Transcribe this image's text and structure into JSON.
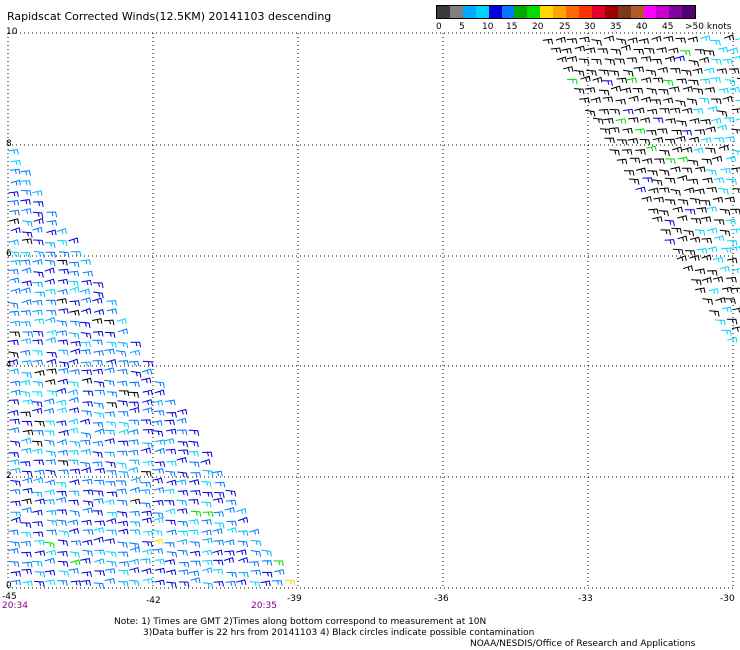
{
  "title": "Rapidscat Corrected Winds(12.5KM) 20141103 descending",
  "legend": {
    "colors": [
      "#3a3a3a",
      "#7f7f7f",
      "#00aaff",
      "#00d5ff",
      "#0000d8",
      "#0078ff",
      "#00aa00",
      "#00dd00",
      "#ffd700",
      "#ffa500",
      "#ff6a00",
      "#ff3300",
      "#e0002a",
      "#a00000",
      "#7b3b1b",
      "#b05a2a",
      "#ff00ff",
      "#cc00cc",
      "#8000a0",
      "#500070"
    ],
    "labels": [
      "0",
      "5",
      "10",
      "15",
      "20",
      "25",
      "30",
      "35",
      "40",
      "45",
      ">50 knots"
    ]
  },
  "axes": {
    "x_labels": [
      "-45",
      "-42",
      "-39",
      "-36",
      "-33",
      "-30"
    ],
    "y_labels": [
      "0",
      "2",
      "4",
      "6",
      "8",
      "10"
    ]
  },
  "times": {
    "left": "20:34",
    "right": "20:35"
  },
  "notes": {
    "line1": "Note: 1) Times are GMT 2)Times along bottom correspond to measurement at 10N",
    "line2": "3)Data buffer is 22 hrs from 20141103  4) Black circles indicate possible contamination",
    "line3": "NOAA/NESDIS/Office of Research and Applications"
  }
}
